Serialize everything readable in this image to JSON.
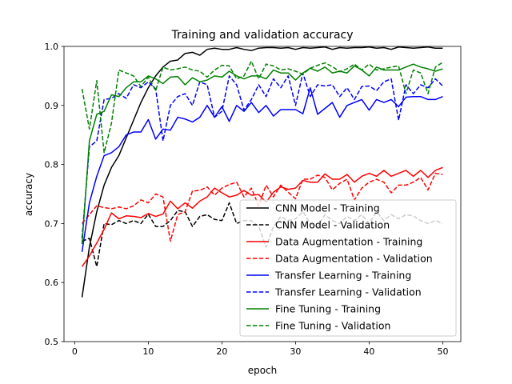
{
  "chart_data": {
    "type": "line",
    "title": "Training and validation accuracy",
    "xlabel": "epoch",
    "ylabel": "accuracy",
    "xlim": [
      -1.45,
      52.45
    ],
    "ylim": [
      0.5,
      1.0
    ],
    "xticks": [
      0,
      10,
      20,
      30,
      40,
      50
    ],
    "yticks": [
      0.5,
      0.6,
      0.7,
      0.8,
      0.9,
      1.0
    ],
    "ytick_labels": [
      "0.5",
      "0.6",
      "0.7",
      "0.8",
      "0.9",
      "1.0"
    ],
    "grid": false,
    "legend_position": "lower-right",
    "x": [
      1,
      2,
      3,
      4,
      5,
      6,
      7,
      8,
      9,
      10,
      11,
      12,
      13,
      14,
      15,
      16,
      17,
      18,
      19,
      20,
      21,
      22,
      23,
      24,
      25,
      26,
      27,
      28,
      29,
      30,
      31,
      32,
      33,
      34,
      35,
      36,
      37,
      38,
      39,
      40,
      41,
      42,
      43,
      44,
      45,
      46,
      47,
      48,
      49,
      50
    ],
    "series": [
      {
        "name": "CNN Model - Training",
        "color": "#000000",
        "dash": "solid",
        "values": [
          0.575,
          0.66,
          0.72,
          0.765,
          0.795,
          0.815,
          0.845,
          0.875,
          0.905,
          0.93,
          0.95,
          0.965,
          0.975,
          0.977,
          0.988,
          0.99,
          0.985,
          0.995,
          0.997,
          0.995,
          0.995,
          0.998,
          0.995,
          0.993,
          0.997,
          0.998,
          0.998,
          0.997,
          0.998,
          0.995,
          0.998,
          0.997,
          0.998,
          0.999,
          0.995,
          0.998,
          0.997,
          0.998,
          0.998,
          0.999,
          0.997,
          0.998,
          0.995,
          0.999,
          0.998,
          0.997,
          0.998,
          0.999,
          0.997,
          0.997
        ]
      },
      {
        "name": "CNN Model - Validation",
        "color": "#000000",
        "dash": "dashed",
        "values": [
          0.67,
          0.675,
          0.627,
          0.7,
          0.698,
          0.705,
          0.7,
          0.705,
          0.7,
          0.716,
          0.695,
          0.695,
          0.705,
          0.722,
          0.72,
          0.695,
          0.712,
          0.715,
          0.707,
          0.705,
          0.735,
          0.7,
          0.705,
          0.705,
          0.695,
          0.66,
          0.695,
          0.712,
          0.705,
          0.708,
          0.72,
          0.7,
          0.695,
          0.715,
          0.705,
          0.7,
          0.712,
          0.705,
          0.715,
          0.7,
          0.72,
          0.705,
          0.715,
          0.708,
          0.715,
          0.713,
          0.705,
          0.7,
          0.705,
          0.7
        ]
      },
      {
        "name": "Data Augmentation - Training",
        "color": "#ff0000",
        "dash": "solid",
        "values": [
          0.627,
          0.645,
          0.667,
          0.69,
          0.718,
          0.708,
          0.713,
          0.712,
          0.71,
          0.717,
          0.712,
          0.716,
          0.738,
          0.725,
          0.735,
          0.726,
          0.738,
          0.745,
          0.76,
          0.752,
          0.745,
          0.748,
          0.756,
          0.748,
          0.749,
          0.736,
          0.753,
          0.762,
          0.758,
          0.76,
          0.773,
          0.77,
          0.77,
          0.784,
          0.775,
          0.775,
          0.783,
          0.77,
          0.78,
          0.785,
          0.78,
          0.79,
          0.78,
          0.785,
          0.79,
          0.78,
          0.79,
          0.778,
          0.79,
          0.795
        ]
      },
      {
        "name": "Data Augmentation - Validation",
        "color": "#ff0000",
        "dash": "dashed",
        "values": [
          0.7,
          0.715,
          0.73,
          0.727,
          0.725,
          0.728,
          0.725,
          0.73,
          0.74,
          0.735,
          0.75,
          0.745,
          0.67,
          0.715,
          0.72,
          0.755,
          0.756,
          0.762,
          0.748,
          0.76,
          0.766,
          0.77,
          0.745,
          0.76,
          0.73,
          0.765,
          0.745,
          0.765,
          0.753,
          0.742,
          0.775,
          0.775,
          0.782,
          0.778,
          0.757,
          0.768,
          0.775,
          0.74,
          0.76,
          0.77,
          0.775,
          0.77,
          0.752,
          0.765,
          0.765,
          0.77,
          0.778,
          0.757,
          0.785,
          0.783
        ]
      },
      {
        "name": "Transfer Learning - Training",
        "color": "#0000ff",
        "dash": "solid",
        "values": [
          0.652,
          0.735,
          0.78,
          0.815,
          0.82,
          0.83,
          0.85,
          0.855,
          0.855,
          0.876,
          0.843,
          0.86,
          0.858,
          0.88,
          0.877,
          0.872,
          0.88,
          0.9,
          0.88,
          0.898,
          0.873,
          0.9,
          0.89,
          0.905,
          0.888,
          0.9,
          0.882,
          0.893,
          0.893,
          0.893,
          0.886,
          0.93,
          0.885,
          0.895,
          0.905,
          0.88,
          0.9,
          0.905,
          0.91,
          0.892,
          0.91,
          0.905,
          0.91,
          0.898,
          0.914,
          0.915,
          0.915,
          0.91,
          0.91,
          0.915
        ]
      },
      {
        "name": "Transfer Learning - Validation",
        "color": "#0000ff",
        "dash": "dashed",
        "values": [
          0.675,
          0.83,
          0.84,
          0.91,
          0.912,
          0.92,
          0.912,
          0.935,
          0.93,
          0.94,
          0.928,
          0.84,
          0.9,
          0.915,
          0.92,
          0.9,
          0.94,
          0.935,
          0.88,
          0.89,
          0.95,
          0.935,
          0.892,
          0.91,
          0.935,
          0.915,
          0.945,
          0.93,
          0.95,
          0.9,
          0.955,
          0.915,
          0.935,
          0.933,
          0.935,
          0.915,
          0.93,
          0.91,
          0.932,
          0.933,
          0.925,
          0.94,
          0.945,
          0.875,
          0.935,
          0.92,
          0.935,
          0.93,
          0.945,
          0.933
        ]
      },
      {
        "name": "Fine Tuning - Training",
        "color": "#008000",
        "dash": "solid",
        "values": [
          0.665,
          0.84,
          0.885,
          0.89,
          0.918,
          0.915,
          0.93,
          0.94,
          0.94,
          0.95,
          0.945,
          0.937,
          0.948,
          0.949,
          0.935,
          0.947,
          0.94,
          0.943,
          0.95,
          0.948,
          0.958,
          0.95,
          0.945,
          0.95,
          0.95,
          0.945,
          0.96,
          0.955,
          0.955,
          0.943,
          0.955,
          0.963,
          0.958,
          0.965,
          0.955,
          0.958,
          0.955,
          0.967,
          0.96,
          0.95,
          0.965,
          0.96,
          0.96,
          0.96,
          0.965,
          0.97,
          0.965,
          0.962,
          0.958,
          0.962
        ]
      },
      {
        "name": "Fine Tuning - Validation",
        "color": "#008000",
        "dash": "dashed",
        "values": [
          0.928,
          0.86,
          0.942,
          0.82,
          0.87,
          0.96,
          0.955,
          0.95,
          0.932,
          0.948,
          0.925,
          0.965,
          0.96,
          0.962,
          0.965,
          0.96,
          0.958,
          0.948,
          0.96,
          0.968,
          0.967,
          0.945,
          0.95,
          0.975,
          0.945,
          0.97,
          0.967,
          0.96,
          0.962,
          0.958,
          0.953,
          0.963,
          0.968,
          0.972,
          0.966,
          0.957,
          0.962,
          0.97,
          0.96,
          0.97,
          0.96,
          0.962,
          0.965,
          0.967,
          0.92,
          0.96,
          0.955,
          0.92,
          0.965,
          0.973
        ]
      }
    ]
  }
}
